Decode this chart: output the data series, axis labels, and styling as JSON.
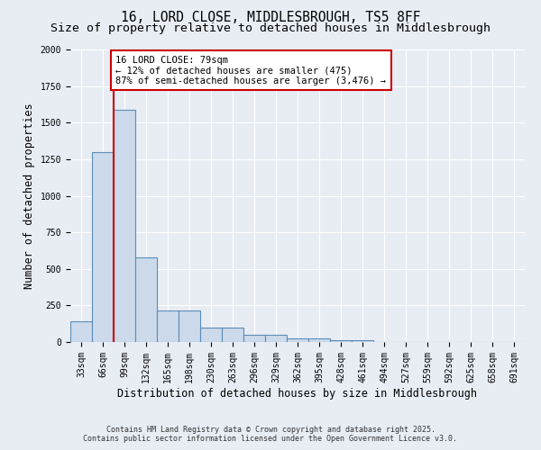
{
  "title_line1": "16, LORD CLOSE, MIDDLESBROUGH, TS5 8FF",
  "title_line2": "Size of property relative to detached houses in Middlesbrough",
  "xlabel": "Distribution of detached houses by size in Middlesbrough",
  "ylabel": "Number of detached properties",
  "categories": [
    "33sqm",
    "66sqm",
    "99sqm",
    "132sqm",
    "165sqm",
    "198sqm",
    "230sqm",
    "263sqm",
    "296sqm",
    "329sqm",
    "362sqm",
    "395sqm",
    "428sqm",
    "461sqm",
    "494sqm",
    "527sqm",
    "559sqm",
    "592sqm",
    "625sqm",
    "658sqm",
    "691sqm"
  ],
  "values": [
    140,
    1300,
    1590,
    580,
    215,
    215,
    100,
    100,
    50,
    50,
    25,
    25,
    15,
    15,
    0,
    0,
    0,
    0,
    0,
    0,
    0
  ],
  "bar_color": "#ccdaeb",
  "bar_edge_color": "#5b8db8",
  "bar_edge_width": 0.8,
  "red_line_x": 1.5,
  "red_line_color": "#cc0000",
  "annotation_line1": "16 LORD CLOSE: 79sqm",
  "annotation_line2": "← 12% of detached houses are smaller (475)",
  "annotation_line3": "87% of semi-detached houses are larger (3,476) →",
  "annotation_box_color": "#ffffff",
  "annotation_box_edge_color": "#cc0000",
  "ylim": [
    0,
    2000
  ],
  "background_color": "#e8edf4",
  "plot_bg_color": "#e8edf4",
  "grid_color": "#ffffff",
  "footnote_line1": "Contains HM Land Registry data © Crown copyright and database right 2025.",
  "footnote_line2": "Contains public sector information licensed under the Open Government Licence v3.0.",
  "title_fontsize": 10.5,
  "subtitle_fontsize": 9.5,
  "tick_fontsize": 7,
  "ylabel_fontsize": 8.5,
  "xlabel_fontsize": 8.5,
  "annotation_fontsize": 7.5,
  "footnote_fontsize": 6.0
}
